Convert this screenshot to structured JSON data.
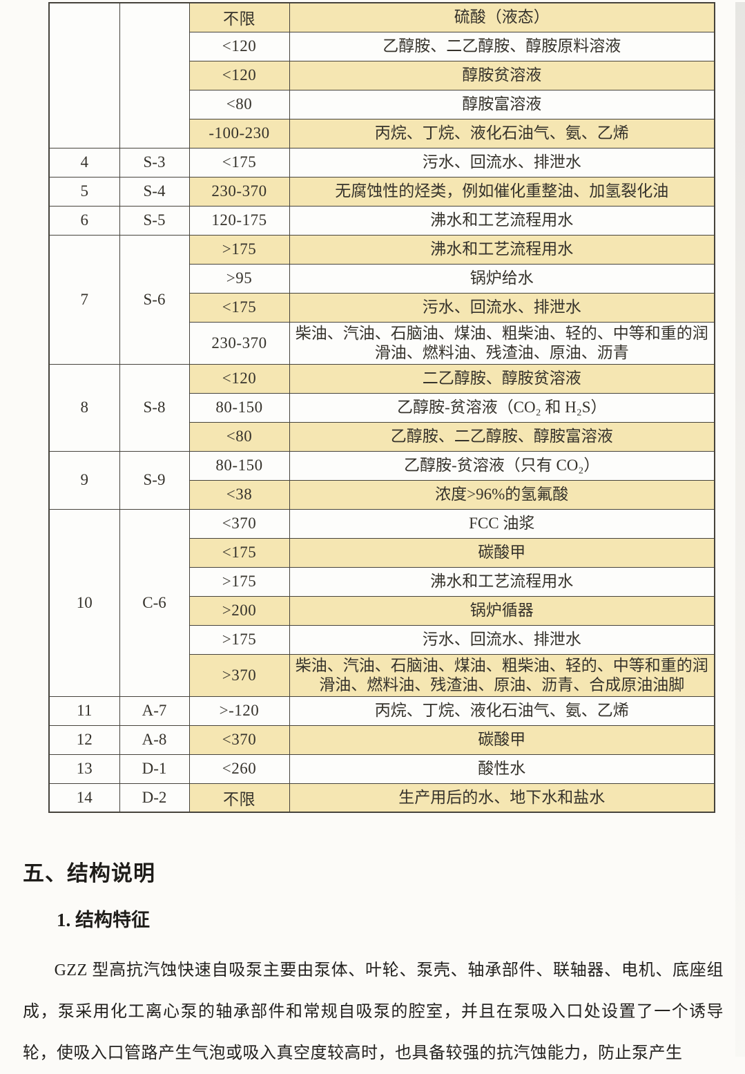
{
  "table": {
    "groups": [
      {
        "num": "",
        "code": "",
        "rows": [
          {
            "temp": "不限",
            "desc": "硫酸（液态）"
          },
          {
            "temp": "<120",
            "desc": "乙醇胺、二乙醇胺、醇胺原料溶液"
          },
          {
            "temp": "<120",
            "desc": "醇胺贫溶液"
          },
          {
            "temp": "<80",
            "desc": "醇胺富溶液"
          },
          {
            "temp": "-100-230",
            "desc": "丙烷、丁烷、液化石油气、氨、乙烯"
          }
        ]
      },
      {
        "num": "4",
        "code": "S-3",
        "rows": [
          {
            "temp": "<175",
            "desc": "污水、回流水、排泄水"
          }
        ]
      },
      {
        "num": "5",
        "code": "S-4",
        "rows": [
          {
            "temp": "230-370",
            "desc": "无腐蚀性的烃类，例如催化重整油、加氢裂化油"
          }
        ]
      },
      {
        "num": "6",
        "code": "S-5",
        "rows": [
          {
            "temp": "120-175",
            "desc": "沸水和工艺流程用水"
          }
        ]
      },
      {
        "num": "7",
        "code": "S-6",
        "rows": [
          {
            "temp": ">175",
            "desc": "沸水和工艺流程用水"
          },
          {
            "temp": ">95",
            "desc": "锅炉给水"
          },
          {
            "temp": "<175",
            "desc": "污水、回流水、排泄水"
          },
          {
            "temp": "230-370",
            "desc": "柴油、汽油、石脑油、煤油、粗柴油、轻的、中等和重的润滑油、燃料油、残渣油、原油、沥青",
            "tall": true
          }
        ]
      },
      {
        "num": "8",
        "code": "S-8",
        "rows": [
          {
            "temp": "<120",
            "desc": "二乙醇胺、醇胺贫溶液"
          },
          {
            "temp": "80-150",
            "desc": "乙醇胺-贫溶液（CO₂ 和 H₂S）"
          },
          {
            "temp": "<80",
            "desc": "乙醇胺、二乙醇胺、醇胺富溶液"
          }
        ]
      },
      {
        "num": "9",
        "code": "S-9",
        "rows": [
          {
            "temp": "80-150",
            "desc": "乙醇胺-贫溶液（只有 CO₂）"
          },
          {
            "temp": "<38",
            "desc": "浓度>96%的氢氟酸"
          }
        ]
      },
      {
        "num": "10",
        "code": "C-6",
        "rows": [
          {
            "temp": "<370",
            "desc": "FCC 油浆"
          },
          {
            "temp": "<175",
            "desc": "碳酸甲"
          },
          {
            "temp": ">175",
            "desc": "沸水和工艺流程用水"
          },
          {
            "temp": ">200",
            "desc": "锅炉循器"
          },
          {
            "temp": ">175",
            "desc": "污水、回流水、排泄水"
          },
          {
            "temp": ">370",
            "desc": "柴油、汽油、石脑油、煤油、粗柴油、轻的、中等和重的润滑油、燃料油、残渣油、原油、沥青、合成原油油脚",
            "tall": true
          }
        ]
      },
      {
        "num": "11",
        "code": "A-7",
        "rows": [
          {
            "temp": ">-120",
            "desc": "丙烷、丁烷、液化石油气、氨、乙烯"
          }
        ]
      },
      {
        "num": "12",
        "code": "A-8",
        "rows": [
          {
            "temp": "<370",
            "desc": "碳酸甲"
          }
        ]
      },
      {
        "num": "13",
        "code": "D-1",
        "rows": [
          {
            "temp": "<260",
            "desc": "酸性水"
          }
        ]
      },
      {
        "num": "14",
        "code": "D-2",
        "rows": [
          {
            "temp": "不限",
            "desc": "生产用后的水、地下水和盐水"
          }
        ]
      }
    ]
  },
  "section": {
    "heading": "五、结构说明",
    "subheading": "1. 结构特征",
    "paragraph": "GZZ 型高抗汽蚀快速自吸泵主要由泵体、叶轮、泵壳、轴承部件、联轴器、电机、底座组成，泵采用化工离心泵的轴承部件和常规自吸泵的腔室，并且在泵吸入口处设置了一个诱导轮，使吸入口管路产生气泡或吸入真空度较高时，也具备较强的抗汽蚀能力，防止泵产生"
  },
  "colors": {
    "row_highlight": "#f5e6b2",
    "row_plain": "#fdfdfb",
    "border": "#45423b",
    "text": "#35322b"
  }
}
